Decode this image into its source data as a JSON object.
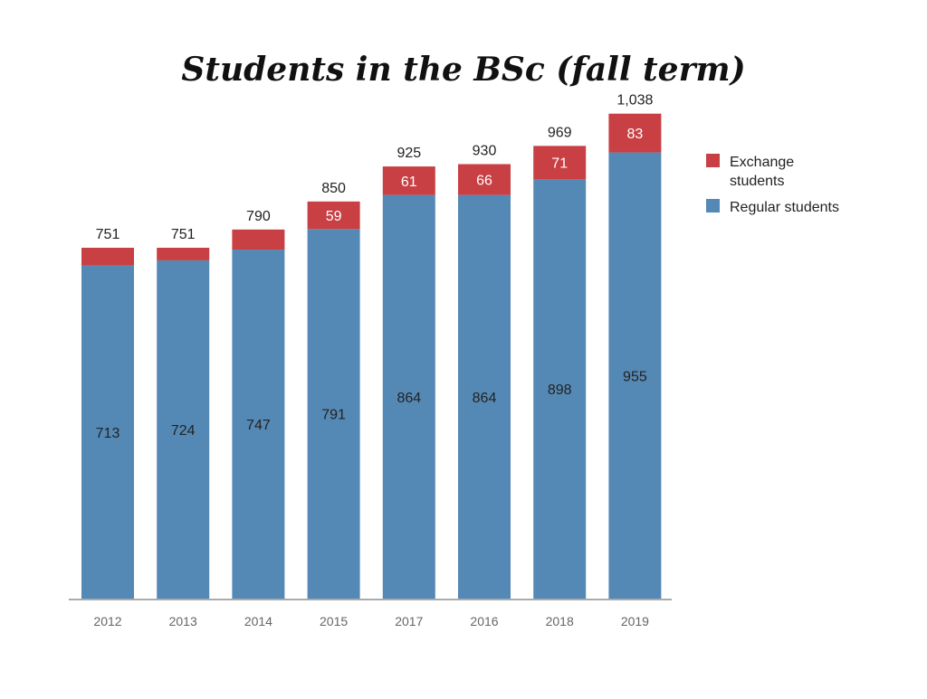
{
  "chart_data": {
    "type": "bar",
    "stacked": true,
    "title": "Students in the BSc (fall term)",
    "xlabel": "",
    "ylabel": "",
    "ylim": [
      0,
      1080
    ],
    "grid": false,
    "legend_position": "right",
    "categories": [
      "2012",
      "2013",
      "2014",
      "2015",
      "2017",
      "2016",
      "2018",
      "2019"
    ],
    "totals": [
      "751",
      "751",
      "790",
      "850",
      "925",
      "930",
      "969",
      "1,038"
    ],
    "series": [
      {
        "name": "Regular students",
        "color": "#5589b5",
        "values": [
          713,
          724,
          747,
          791,
          864,
          864,
          898,
          955
        ],
        "labels": [
          "713",
          "724",
          "747",
          "791",
          "864",
          "864",
          "898",
          "955"
        ],
        "label_color": "#222222"
      },
      {
        "name": "Exchange students",
        "color": "#c84043",
        "values": [
          38,
          27,
          43,
          59,
          61,
          66,
          71,
          83
        ],
        "labels": [
          "",
          "",
          "",
          "59",
          "61",
          "66",
          "71",
          "83"
        ],
        "label_color": "#ffffff"
      }
    ],
    "legend": {
      "entries": [
        {
          "lines": [
            "Exchange",
            "students"
          ],
          "color": "#c84043"
        },
        {
          "lines": [
            "Regular students"
          ],
          "color": "#5589b5"
        }
      ]
    },
    "axis_color": "#aaaaaa",
    "tick_label_color": "#666666",
    "total_label_color": "#222222"
  }
}
